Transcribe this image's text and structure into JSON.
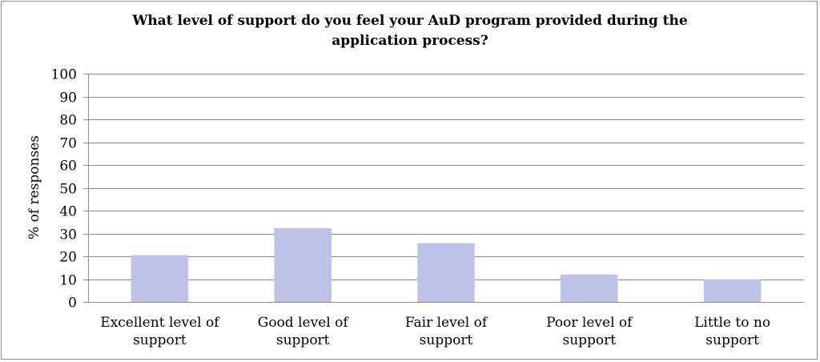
{
  "chart_data": {
    "type": "bar",
    "title": "What level of support do you feel your  AuD program provided during the application process?",
    "xlabel": "",
    "ylabel": "% of responses",
    "categories": [
      [
        "Excellent level of",
        "support"
      ],
      [
        "Good level of",
        "support"
      ],
      [
        "Fair level of",
        "support"
      ],
      [
        "Poor level of",
        "support"
      ],
      [
        "Little to no",
        "support"
      ]
    ],
    "values": [
      20.5,
      32.3,
      25.8,
      12,
      9.8
    ],
    "ylim": [
      0,
      100
    ],
    "yticks": [
      0,
      10,
      20,
      30,
      40,
      50,
      60,
      70,
      80,
      90,
      100
    ],
    "grid": true,
    "legend": "none",
    "bar_color": "#bfc2e6",
    "grid_color": "#888888"
  }
}
